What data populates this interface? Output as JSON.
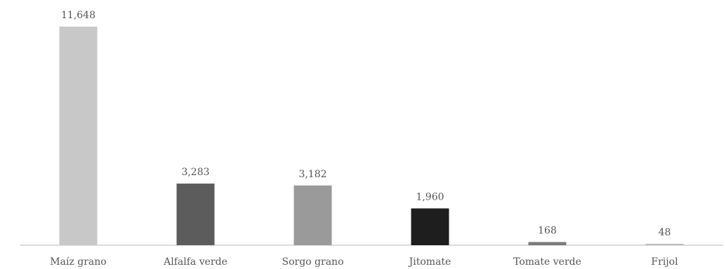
{
  "chart_data": {
    "type": "bar",
    "title": "",
    "xlabel": "",
    "ylabel": "",
    "categories": [
      "Maíz grano",
      "Alfalfa verde",
      "Sorgo grano",
      "Jitomate",
      "Tomate verde",
      "Frijol"
    ],
    "values": [
      11648,
      3283,
      3182,
      1960,
      168,
      48
    ],
    "value_labels": [
      "11,648",
      "3,283",
      "3,182",
      "1,960",
      "168",
      "48"
    ],
    "bar_colors": [
      "#c8c8c8",
      "#5c5c5c",
      "#9a9a9a",
      "#1e1e1e",
      "#7a7a7a",
      "#bdbdbd"
    ],
    "ylim": [
      0,
      11648
    ],
    "grid": false,
    "legend": "none"
  }
}
